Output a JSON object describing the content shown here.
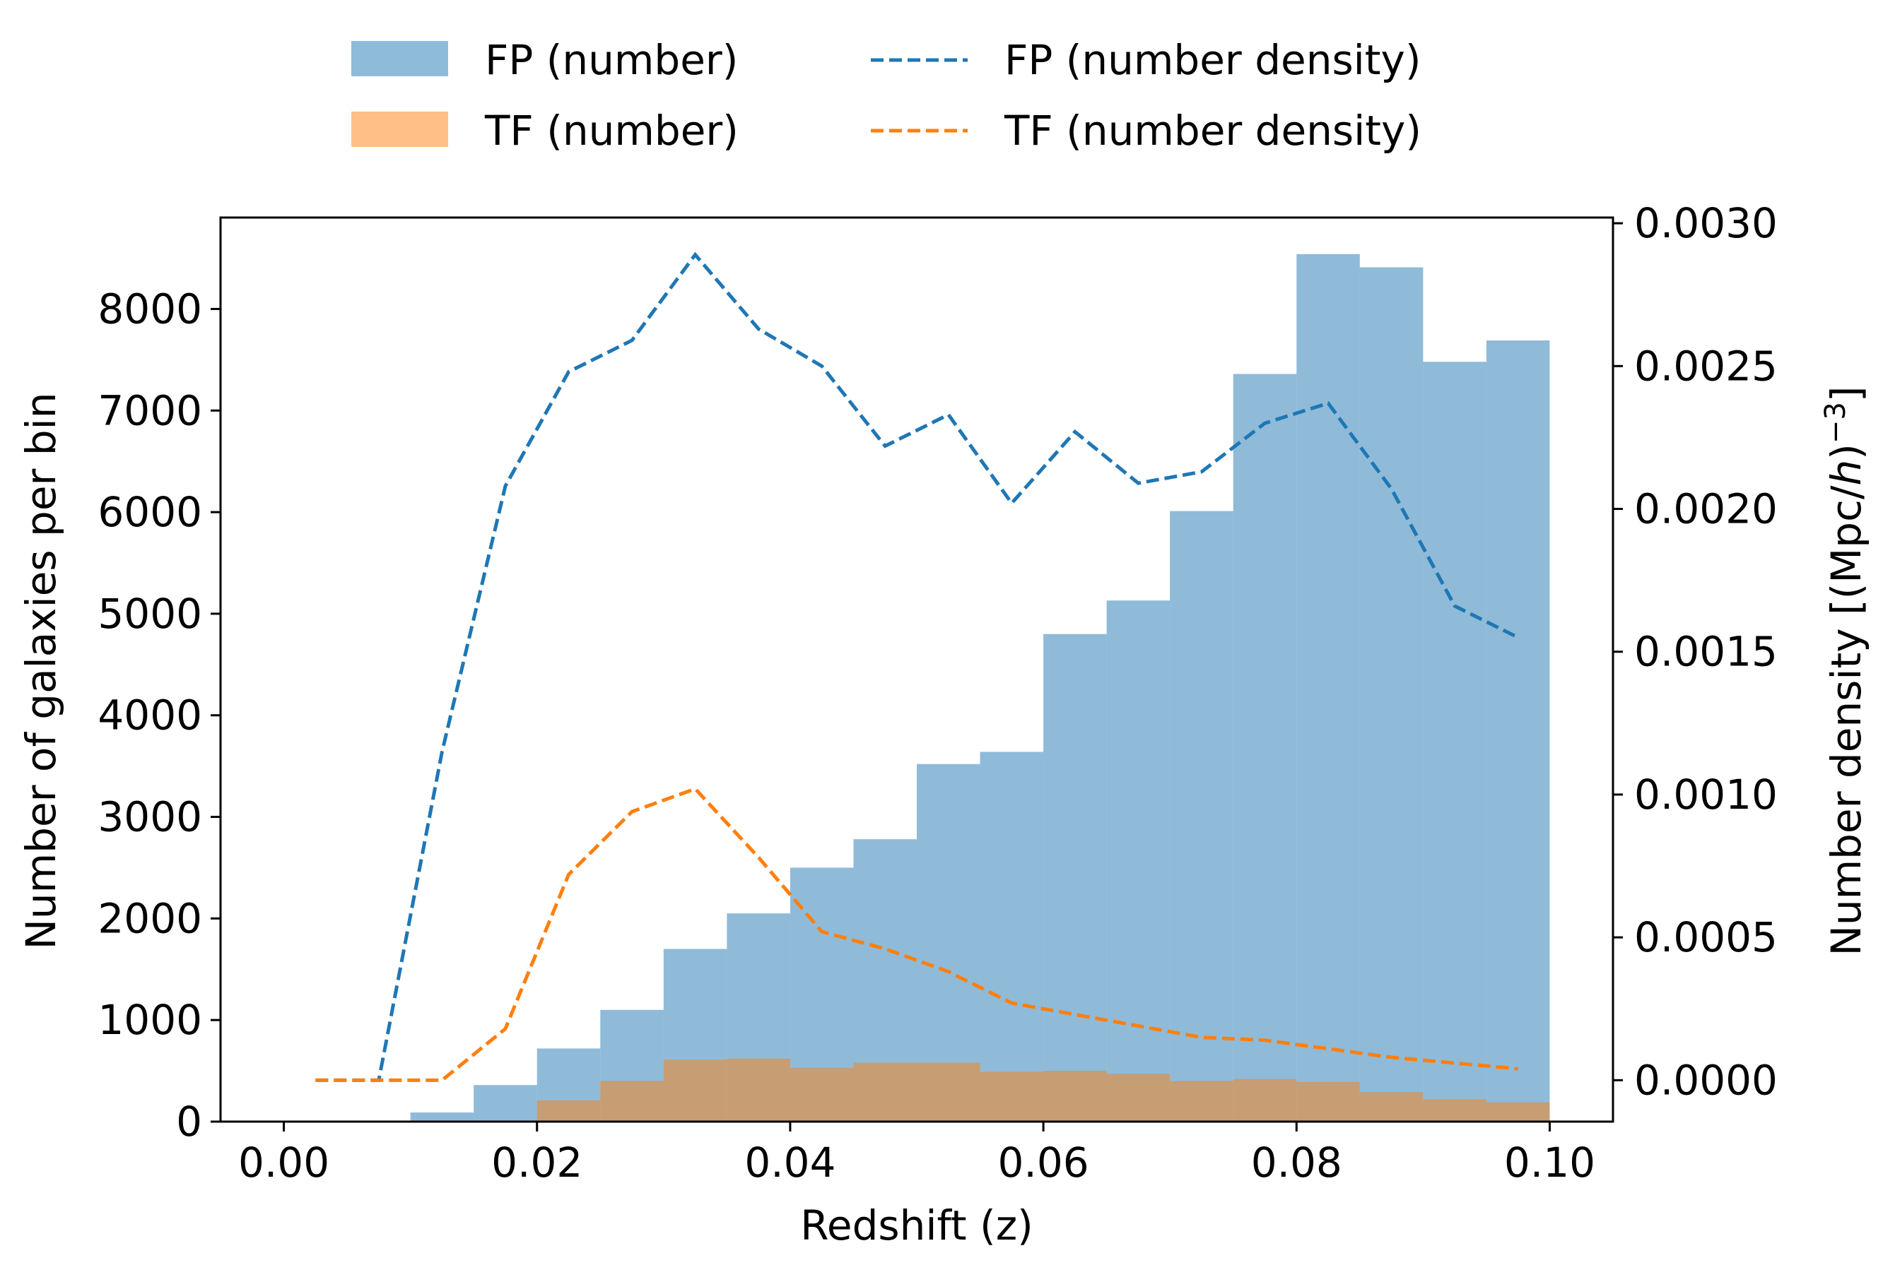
{
  "chart_data": {
    "type": "bar",
    "title": "",
    "xlabel": "Redshift (z)",
    "ylabel": "Number of galaxies per bin",
    "y2label_main": "Number density [(Mpc/",
    "y2label_italic": "h",
    "y2label_close": ")",
    "y2label_exp": "−3",
    "y2label_end": "]",
    "xlim": [
      -0.005,
      0.105
    ],
    "ylim": [
      0,
      8900
    ],
    "y2lim": [
      -0.000145,
      0.00302
    ],
    "xticks": [
      0.0,
      0.02,
      0.04,
      0.06,
      0.08,
      0.1
    ],
    "xtick_labels": [
      "0.00",
      "0.02",
      "0.04",
      "0.06",
      "0.08",
      "0.10"
    ],
    "yticks": [
      0,
      1000,
      2000,
      3000,
      4000,
      5000,
      6000,
      7000,
      8000
    ],
    "ytick_labels": [
      "0",
      "1000",
      "2000",
      "3000",
      "4000",
      "5000",
      "6000",
      "7000",
      "8000"
    ],
    "y2ticks": [
      0.0,
      0.0005,
      0.001,
      0.0015,
      0.002,
      0.0025,
      0.003
    ],
    "y2tick_labels": [
      "0.0000",
      "0.0005",
      "0.0010",
      "0.0015",
      "0.0020",
      "0.0025",
      "0.0030"
    ],
    "bin_edges": [
      0.0,
      0.005,
      0.01,
      0.015,
      0.02,
      0.025,
      0.03,
      0.035,
      0.04,
      0.045,
      0.05,
      0.055,
      0.06,
      0.065,
      0.07,
      0.075,
      0.08,
      0.085,
      0.09,
      0.095,
      0.1
    ],
    "bin_centers": [
      0.0025,
      0.0075,
      0.0125,
      0.0175,
      0.0225,
      0.0275,
      0.0325,
      0.0375,
      0.0425,
      0.0475,
      0.0525,
      0.0575,
      0.0625,
      0.0675,
      0.0725,
      0.0775,
      0.0825,
      0.0875,
      0.0925,
      0.0975
    ],
    "series": [
      {
        "name": "FP (number)",
        "kind": "hist",
        "axis": "left",
        "color": "#1f77b4",
        "values": [
          0,
          0,
          90,
          360,
          720,
          1100,
          1700,
          2050,
          2500,
          2780,
          3520,
          3640,
          4800,
          5130,
          6010,
          7360,
          8540,
          8410,
          7480,
          7690
        ]
      },
      {
        "name": "TF (number)",
        "kind": "hist",
        "axis": "left",
        "color": "#ff7f0e",
        "values": [
          0,
          0,
          0,
          0,
          210,
          400,
          610,
          620,
          530,
          580,
          580,
          490,
          500,
          470,
          400,
          420,
          390,
          290,
          220,
          190
        ]
      },
      {
        "name": "FP (number density)",
        "kind": "line",
        "axis": "right",
        "color": "#1f77b4",
        "values": [
          0.0,
          0.0,
          0.00115,
          0.00208,
          0.00248,
          0.00259,
          0.00289,
          0.00263,
          0.0025,
          0.00222,
          0.00233,
          0.00202,
          0.00227,
          0.00209,
          0.00213,
          0.0023,
          0.00237,
          0.00207,
          0.00166,
          0.00155
        ]
      },
      {
        "name": "TF (number density)",
        "kind": "line",
        "axis": "right",
        "color": "#ff7f0e",
        "values": [
          0.0,
          0.0,
          0.0,
          0.00018,
          0.00072,
          0.00094,
          0.00102,
          0.00078,
          0.00052,
          0.00046,
          0.00038,
          0.00027,
          0.00023,
          0.00019,
          0.00015,
          0.00014,
          0.00011,
          8e-05,
          6e-05,
          4e-05
        ]
      }
    ],
    "legend_position": "top-center",
    "grid": false
  }
}
